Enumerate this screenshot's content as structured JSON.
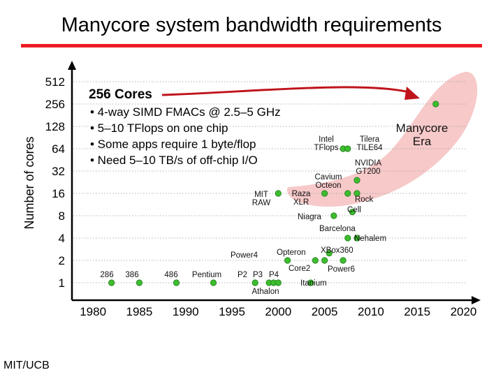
{
  "slide": {
    "title": "Manycore system bandwidth requirements",
    "footer": "MIT/UCB",
    "accent_color": "#ee1c24"
  },
  "chart_data": {
    "type": "scatter",
    "ylabel": "Number of cores",
    "xlabel": "",
    "x_ticks": [
      1980,
      1985,
      1990,
      1995,
      2000,
      2005,
      2010,
      2015,
      2020
    ],
    "y_ticks": [
      1,
      2,
      4,
      8,
      16,
      32,
      64,
      128,
      256,
      512
    ],
    "y_scale": "log2",
    "xlim": [
      1977.5,
      2022
    ],
    "ylim": [
      0.75,
      700
    ],
    "grid": "horizontal dotted",
    "point_color": "#3ebd2f",
    "points": [
      {
        "label": "286",
        "x": 1982,
        "y": 1
      },
      {
        "label": "386",
        "x": 1985,
        "y": 1
      },
      {
        "label": "486",
        "x": 1989,
        "y": 1
      },
      {
        "label": "Pentium",
        "x": 1993,
        "y": 1
      },
      {
        "label": "P2",
        "x": 1997.5,
        "y": 1
      },
      {
        "label": "P3",
        "x": 1999,
        "y": 1
      },
      {
        "label": "Athalon",
        "x": 1999.5,
        "y": 1
      },
      {
        "label": "P4",
        "x": 2000,
        "y": 1
      },
      {
        "label": "Itanium",
        "x": 2003.5,
        "y": 1
      },
      {
        "label": "Power4",
        "x": 2001,
        "y": 2
      },
      {
        "label": "Opteron",
        "x": 2004,
        "y": 2
      },
      {
        "label": "Core2",
        "x": 2005,
        "y": 2
      },
      {
        "label": "Power6",
        "x": 2007,
        "y": 2
      },
      {
        "label": "XBox360",
        "x": 2005.5,
        "y": 2.5
      },
      {
        "label": "Barcelona",
        "x": 2007.5,
        "y": 4
      },
      {
        "label": "Nehalem",
        "x": 2008.5,
        "y": 4
      },
      {
        "label": "Niagra",
        "x": 2006,
        "y": 8
      },
      {
        "label": "Cell",
        "x": 2008,
        "y": 9
      },
      {
        "label": "MIT RAW",
        "x": 2000,
        "y": 16
      },
      {
        "label": "Raza XLR",
        "x": 2005,
        "y": 16
      },
      {
        "label": "Cavium Octeon",
        "x": 2007.5,
        "y": 16
      },
      {
        "label": "Rock",
        "x": 2008.5,
        "y": 16
      },
      {
        "label": "NVIDIA GT200",
        "x": 2008.5,
        "y": 24
      },
      {
        "label": "Intel TFlops",
        "x": 2007,
        "y": 64
      },
      {
        "label": "Tilera TILE64",
        "x": 2007.5,
        "y": 64
      },
      {
        "label": "Manycore Era",
        "x": 2017,
        "y": 256
      }
    ],
    "annotation": {
      "heading": "256 Cores",
      "bullets": [
        "4-way SIMD FMACs @ 2.5–5 GHz",
        "5–10 TFlops on one chip",
        "Some apps require 1 byte/flop",
        "Need 5–10 TB/s of off-chip I/O"
      ]
    },
    "region_color": "#f7c9c9",
    "labels": [
      {
        "key": "286",
        "lines": [
          "286"
        ]
      },
      {
        "key": "386",
        "lines": [
          "386"
        ]
      },
      {
        "key": "486",
        "lines": [
          "486"
        ]
      },
      {
        "key": "Pentium",
        "lines": [
          "Pentium"
        ]
      },
      {
        "key": "P2",
        "lines": [
          "P2"
        ]
      },
      {
        "key": "P3",
        "lines": [
          "P3"
        ]
      },
      {
        "key": "P4",
        "lines": [
          "P4"
        ]
      },
      {
        "key": "Athalon",
        "lines": [
          "Athalon"
        ]
      },
      {
        "key": "Itanium",
        "lines": [
          "Itanium"
        ]
      },
      {
        "key": "Power4",
        "lines": [
          "Power4"
        ]
      },
      {
        "key": "Opteron",
        "lines": [
          "Opteron"
        ]
      },
      {
        "key": "XBox360",
        "lines": [
          "XBox360"
        ]
      },
      {
        "key": "Core2",
        "lines": [
          "Core2"
        ]
      },
      {
        "key": "Power6",
        "lines": [
          "Power6"
        ]
      },
      {
        "key": "Barcelona",
        "lines": [
          "Barcelona"
        ]
      },
      {
        "key": "Nehalem",
        "lines": [
          "Nehalem"
        ]
      },
      {
        "key": "Niagra",
        "lines": [
          "Niagra"
        ]
      },
      {
        "key": "Cell",
        "lines": [
          "Cell"
        ]
      },
      {
        "key": "Rock",
        "lines": [
          "Rock"
        ]
      },
      {
        "key": "MIT RAW",
        "lines": [
          "MIT",
          "RAW"
        ]
      },
      {
        "key": "Raza XLR",
        "lines": [
          "Raza",
          "XLR"
        ]
      },
      {
        "key": "Cavium Octeon",
        "lines": [
          "Cavium",
          "Octeon"
        ]
      },
      {
        "key": "NVIDIA GT200",
        "lines": [
          "NVIDIA",
          "GT200"
        ]
      },
      {
        "key": "Intel TFlops",
        "lines": [
          "Intel",
          "TFlops"
        ]
      },
      {
        "key": "Tilera TILE64",
        "lines": [
          "Tilera",
          "TILE64"
        ]
      },
      {
        "key": "Manycore Era",
        "lines": [
          "Manycore",
          "Era"
        ]
      }
    ]
  }
}
